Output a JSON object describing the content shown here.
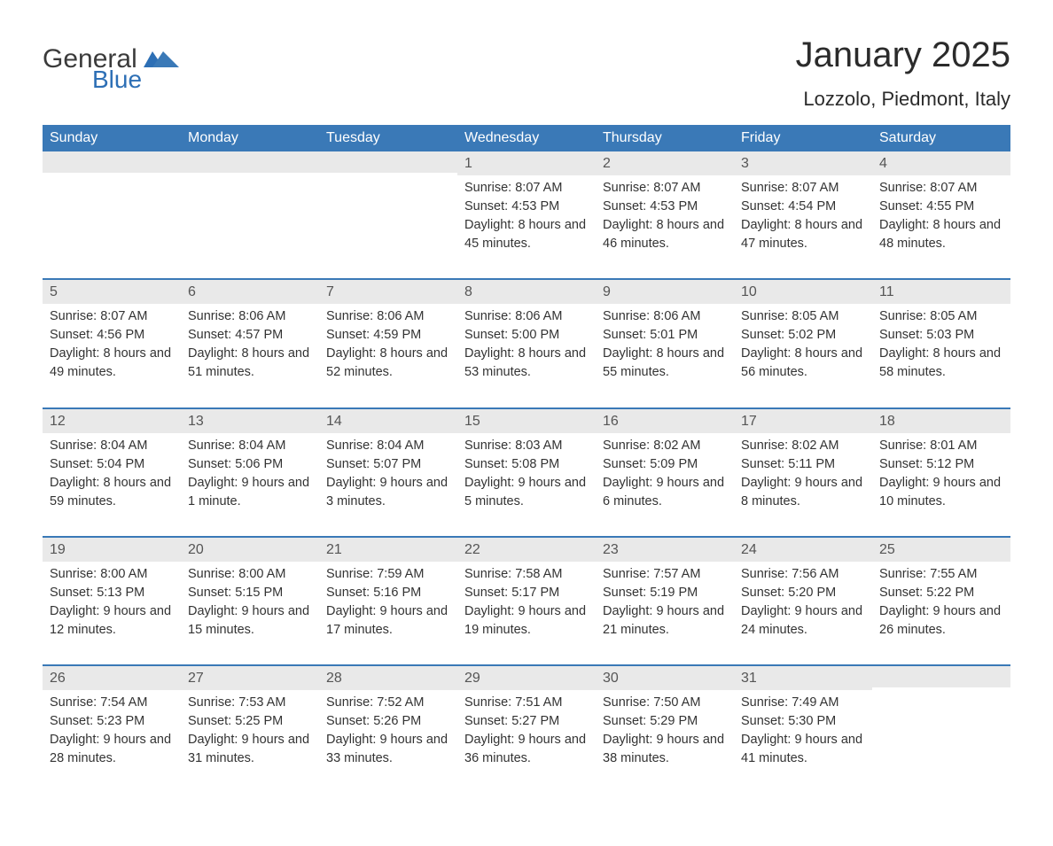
{
  "logo": {
    "word1": "General",
    "word2": "Blue"
  },
  "title": "January 2025",
  "location": "Lozzolo, Piedmont, Italy",
  "colors": {
    "header_bg": "#3a79b7",
    "header_text": "#ffffff",
    "daynum_bg": "#e9e9e9",
    "row_border": "#3a79b7",
    "logo_blue": "#2d6fb5",
    "body_text": "#333333"
  },
  "day_names": [
    "Sunday",
    "Monday",
    "Tuesday",
    "Wednesday",
    "Thursday",
    "Friday",
    "Saturday"
  ],
  "weeks": [
    [
      null,
      null,
      null,
      {
        "n": "1",
        "sr": "8:07 AM",
        "ss": "4:53 PM",
        "dl": "8 hours and 45 minutes."
      },
      {
        "n": "2",
        "sr": "8:07 AM",
        "ss": "4:53 PM",
        "dl": "8 hours and 46 minutes."
      },
      {
        "n": "3",
        "sr": "8:07 AM",
        "ss": "4:54 PM",
        "dl": "8 hours and 47 minutes."
      },
      {
        "n": "4",
        "sr": "8:07 AM",
        "ss": "4:55 PM",
        "dl": "8 hours and 48 minutes."
      }
    ],
    [
      {
        "n": "5",
        "sr": "8:07 AM",
        "ss": "4:56 PM",
        "dl": "8 hours and 49 minutes."
      },
      {
        "n": "6",
        "sr": "8:06 AM",
        "ss": "4:57 PM",
        "dl": "8 hours and 51 minutes."
      },
      {
        "n": "7",
        "sr": "8:06 AM",
        "ss": "4:59 PM",
        "dl": "8 hours and 52 minutes."
      },
      {
        "n": "8",
        "sr": "8:06 AM",
        "ss": "5:00 PM",
        "dl": "8 hours and 53 minutes."
      },
      {
        "n": "9",
        "sr": "8:06 AM",
        "ss": "5:01 PM",
        "dl": "8 hours and 55 minutes."
      },
      {
        "n": "10",
        "sr": "8:05 AM",
        "ss": "5:02 PM",
        "dl": "8 hours and 56 minutes."
      },
      {
        "n": "11",
        "sr": "8:05 AM",
        "ss": "5:03 PM",
        "dl": "8 hours and 58 minutes."
      }
    ],
    [
      {
        "n": "12",
        "sr": "8:04 AM",
        "ss": "5:04 PM",
        "dl": "8 hours and 59 minutes."
      },
      {
        "n": "13",
        "sr": "8:04 AM",
        "ss": "5:06 PM",
        "dl": "9 hours and 1 minute."
      },
      {
        "n": "14",
        "sr": "8:04 AM",
        "ss": "5:07 PM",
        "dl": "9 hours and 3 minutes."
      },
      {
        "n": "15",
        "sr": "8:03 AM",
        "ss": "5:08 PM",
        "dl": "9 hours and 5 minutes."
      },
      {
        "n": "16",
        "sr": "8:02 AM",
        "ss": "5:09 PM",
        "dl": "9 hours and 6 minutes."
      },
      {
        "n": "17",
        "sr": "8:02 AM",
        "ss": "5:11 PM",
        "dl": "9 hours and 8 minutes."
      },
      {
        "n": "18",
        "sr": "8:01 AM",
        "ss": "5:12 PM",
        "dl": "9 hours and 10 minutes."
      }
    ],
    [
      {
        "n": "19",
        "sr": "8:00 AM",
        "ss": "5:13 PM",
        "dl": "9 hours and 12 minutes."
      },
      {
        "n": "20",
        "sr": "8:00 AM",
        "ss": "5:15 PM",
        "dl": "9 hours and 15 minutes."
      },
      {
        "n": "21",
        "sr": "7:59 AM",
        "ss": "5:16 PM",
        "dl": "9 hours and 17 minutes."
      },
      {
        "n": "22",
        "sr": "7:58 AM",
        "ss": "5:17 PM",
        "dl": "9 hours and 19 minutes."
      },
      {
        "n": "23",
        "sr": "7:57 AM",
        "ss": "5:19 PM",
        "dl": "9 hours and 21 minutes."
      },
      {
        "n": "24",
        "sr": "7:56 AM",
        "ss": "5:20 PM",
        "dl": "9 hours and 24 minutes."
      },
      {
        "n": "25",
        "sr": "7:55 AM",
        "ss": "5:22 PM",
        "dl": "9 hours and 26 minutes."
      }
    ],
    [
      {
        "n": "26",
        "sr": "7:54 AM",
        "ss": "5:23 PM",
        "dl": "9 hours and 28 minutes."
      },
      {
        "n": "27",
        "sr": "7:53 AM",
        "ss": "5:25 PM",
        "dl": "9 hours and 31 minutes."
      },
      {
        "n": "28",
        "sr": "7:52 AM",
        "ss": "5:26 PM",
        "dl": "9 hours and 33 minutes."
      },
      {
        "n": "29",
        "sr": "7:51 AM",
        "ss": "5:27 PM",
        "dl": "9 hours and 36 minutes."
      },
      {
        "n": "30",
        "sr": "7:50 AM",
        "ss": "5:29 PM",
        "dl": "9 hours and 38 minutes."
      },
      {
        "n": "31",
        "sr": "7:49 AM",
        "ss": "5:30 PM",
        "dl": "9 hours and 41 minutes."
      },
      null
    ]
  ],
  "labels": {
    "sunrise": "Sunrise: ",
    "sunset": "Sunset: ",
    "daylight": "Daylight: "
  }
}
